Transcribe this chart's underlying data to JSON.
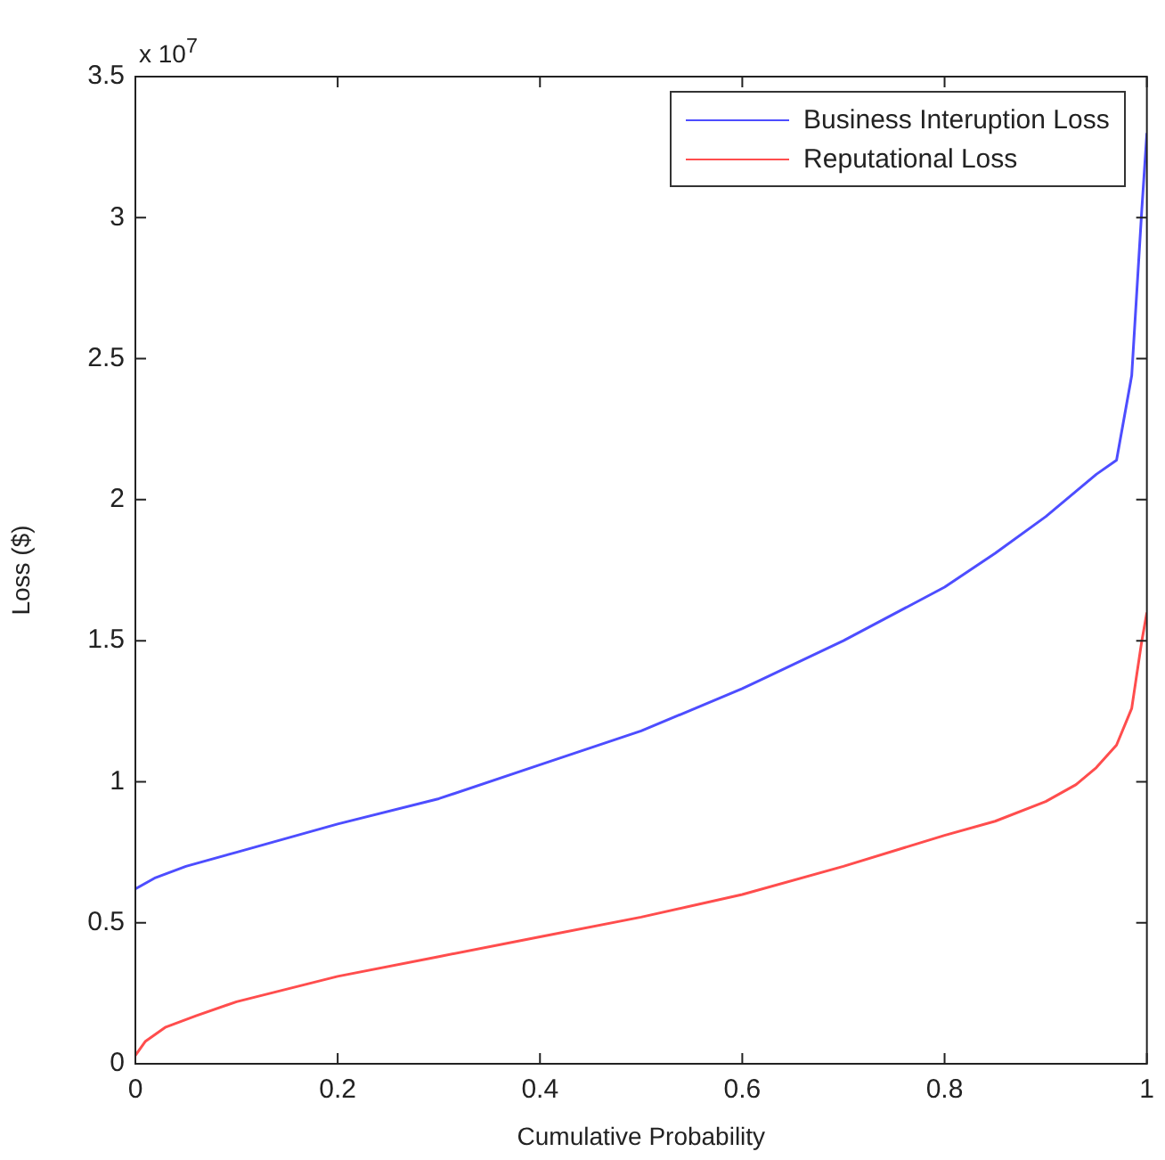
{
  "chart_data": {
    "type": "line",
    "xlabel": "Cumulative Probability",
    "ylabel": "Loss ($)",
    "annotations": [
      "x 10$^{7}$"
    ],
    "xlim": [
      0,
      1
    ],
    "xticks": [
      0,
      0.2,
      0.4,
      0.6,
      0.8,
      1
    ],
    "ylim": [
      0,
      3.5
    ],
    "yticks": [
      0,
      0.5,
      1,
      1.5,
      2,
      2.5,
      3,
      3.5
    ],
    "grid": false,
    "legend": "top right",
    "marker": "none",
    "line_style": "solid",
    "series": [
      {
        "name": "Business Interuption Loss",
        "color": "#4d4dff",
        "x": [
          0,
          0.02,
          0.05,
          0.1,
          0.2,
          0.3,
          0.4,
          0.5,
          0.6,
          0.7,
          0.8,
          0.85,
          0.9,
          0.95,
          0.97,
          0.985,
          0.995,
          1
        ],
        "values": [
          0.62,
          0.66,
          0.7,
          0.75,
          0.85,
          0.94,
          1.06,
          1.18,
          1.33,
          1.5,
          1.69,
          1.81,
          1.94,
          2.09,
          2.14,
          2.44,
          3.03,
          3.3
        ]
      },
      {
        "name": "Reputational Loss",
        "color": "#ff4d4d",
        "x": [
          0,
          0.01,
          0.03,
          0.06,
          0.1,
          0.2,
          0.3,
          0.4,
          0.5,
          0.6,
          0.7,
          0.8,
          0.85,
          0.9,
          0.93,
          0.95,
          0.97,
          0.985,
          0.995,
          1
        ],
        "values": [
          0.03,
          0.08,
          0.13,
          0.17,
          0.22,
          0.31,
          0.38,
          0.45,
          0.52,
          0.6,
          0.7,
          0.81,
          0.86,
          0.93,
          0.99,
          1.05,
          1.13,
          1.26,
          1.5,
          1.6
        ]
      }
    ]
  }
}
